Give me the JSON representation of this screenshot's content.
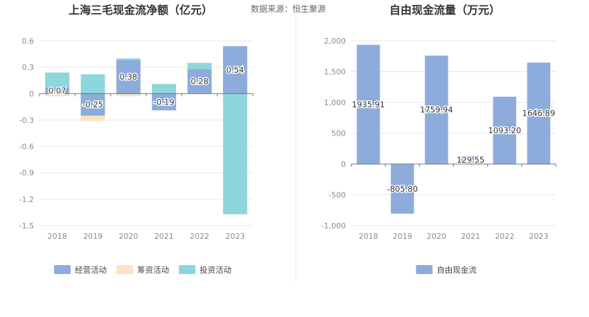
{
  "source_text": "数据来源：恒生聚源",
  "chart_data": [
    {
      "type": "bar",
      "stacked": true,
      "title": "上海三毛现金流净额（亿元）",
      "categories": [
        "2018",
        "2019",
        "2020",
        "2021",
        "2022",
        "2023"
      ],
      "ylim": [
        -1.5,
        0.6
      ],
      "yticks": [
        "0.6",
        "0.3",
        "0",
        "-0.3",
        "-0.6",
        "-0.9",
        "-1.2",
        "-1.5"
      ],
      "ytick_values": [
        0.6,
        0.3,
        0,
        -0.3,
        -0.6,
        -0.9,
        -1.2,
        -1.5
      ],
      "grid": true,
      "legend_position": "bottom",
      "series": [
        {
          "name": "经营活动",
          "color": "#8eacdb",
          "values": [
            0.07,
            -0.25,
            0.38,
            -0.19,
            0.28,
            0.54
          ],
          "labels": [
            "0.07",
            "-0.25",
            "0.38",
            "-0.19",
            "0.28",
            "0.54"
          ]
        },
        {
          "name": "筹资活动",
          "color": "#fbe3c0",
          "values": [
            -0.03,
            -0.06,
            -0.03,
            0,
            0,
            0
          ]
        },
        {
          "name": "投资活动",
          "color": "#8dd7dc",
          "values": [
            0.17,
            0.22,
            0.02,
            0.11,
            0.07,
            -1.37
          ]
        }
      ]
    },
    {
      "type": "bar",
      "title": "自由现金流量（万元）",
      "categories": [
        "2018",
        "2019",
        "2020",
        "2021",
        "2022",
        "2023"
      ],
      "ylim": [
        -1000,
        2000
      ],
      "yticks": [
        "2,000",
        "1,500",
        "1,000",
        "500",
        "0",
        "-500",
        "-1,000"
      ],
      "ytick_values": [
        2000,
        1500,
        1000,
        500,
        0,
        -500,
        -1000
      ],
      "grid": true,
      "legend_position": "bottom",
      "series": [
        {
          "name": "自由现金流",
          "color": "#8eacdb",
          "values": [
            1935.91,
            -805.8,
            1759.94,
            129.55,
            1093.2,
            1646.89
          ],
          "labels": [
            "1935.91",
            "-805.80",
            "1759.94",
            "129.55",
            "1093.20",
            "1646.89"
          ]
        }
      ]
    }
  ]
}
